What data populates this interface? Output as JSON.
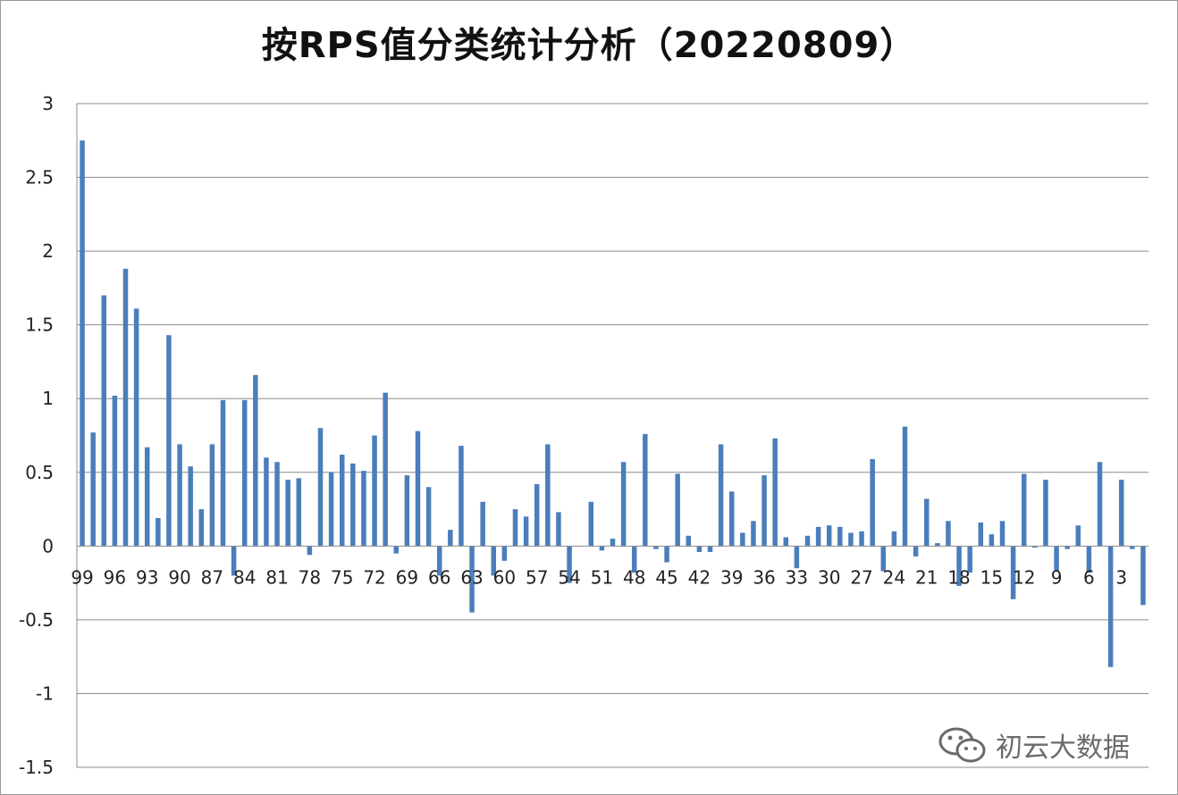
{
  "chart_data": {
    "type": "bar",
    "title": "按RPS值分类统计分析（20220809）",
    "xlabel": "",
    "ylabel": "",
    "ylim": [
      -1.5,
      3
    ],
    "yticks": [
      3,
      2.5,
      2,
      1.5,
      1,
      0.5,
      0,
      -0.5,
      -1,
      -1.5
    ],
    "grid": true,
    "legend": "none",
    "bar_color": "#4a7ebb",
    "categories": [
      99,
      98,
      97,
      96,
      95,
      94,
      93,
      92,
      91,
      90,
      89,
      88,
      87,
      86,
      85,
      84,
      83,
      82,
      81,
      80,
      79,
      78,
      77,
      76,
      75,
      74,
      73,
      72,
      71,
      70,
      69,
      68,
      67,
      66,
      65,
      64,
      63,
      62,
      61,
      60,
      59,
      58,
      57,
      56,
      55,
      54,
      53,
      52,
      51,
      50,
      49,
      48,
      47,
      46,
      45,
      44,
      43,
      42,
      41,
      40,
      39,
      38,
      37,
      36,
      35,
      34,
      33,
      32,
      31,
      30,
      29,
      28,
      27,
      26,
      25,
      24,
      23,
      22,
      21,
      20,
      19,
      18,
      17,
      16,
      15,
      14,
      13,
      12,
      11,
      10,
      9,
      8,
      7,
      6,
      5,
      4,
      3,
      2,
      1
    ],
    "shown_xticks": [
      99,
      96,
      93,
      90,
      87,
      84,
      81,
      78,
      75,
      72,
      69,
      66,
      63,
      60,
      57,
      54,
      51,
      48,
      45,
      42,
      39,
      36,
      33,
      30,
      27,
      24,
      21,
      18,
      15,
      12,
      9,
      6,
      3
    ],
    "values": [
      2.75,
      0.77,
      1.7,
      1.02,
      1.88,
      1.61,
      0.67,
      0.19,
      1.43,
      0.69,
      0.54,
      0.25,
      0.69,
      0.99,
      -0.2,
      0.99,
      1.16,
      0.6,
      0.57,
      0.45,
      0.46,
      -0.06,
      0.8,
      0.5,
      0.62,
      0.56,
      0.51,
      0.75,
      1.04,
      -0.05,
      0.48,
      0.78,
      0.4,
      -0.2,
      0.11,
      0.68,
      -0.45,
      0.3,
      -0.2,
      -0.1,
      0.25,
      0.2,
      0.42,
      0.69,
      0.23,
      -0.25,
      0.0,
      0.3,
      -0.03,
      0.05,
      0.57,
      -0.18,
      0.76,
      -0.02,
      -0.11,
      0.49,
      0.07,
      -0.04,
      -0.04,
      0.69,
      0.37,
      0.09,
      0.17,
      0.48,
      0.73,
      0.06,
      -0.15,
      0.07,
      0.13,
      0.14,
      0.13,
      0.09,
      0.1,
      0.59,
      -0.17,
      0.1,
      0.81,
      -0.07,
      0.32,
      0.02,
      0.17,
      -0.27,
      -0.18,
      0.16,
      0.08,
      0.17,
      -0.36,
      0.49,
      -0.01,
      0.45,
      -0.17,
      -0.02,
      0.14,
      -0.18,
      0.57,
      -0.82,
      0.45,
      -0.02,
      -0.4
    ]
  },
  "watermark": {
    "text": "初云大数据",
    "icon": "wechat-icon"
  }
}
